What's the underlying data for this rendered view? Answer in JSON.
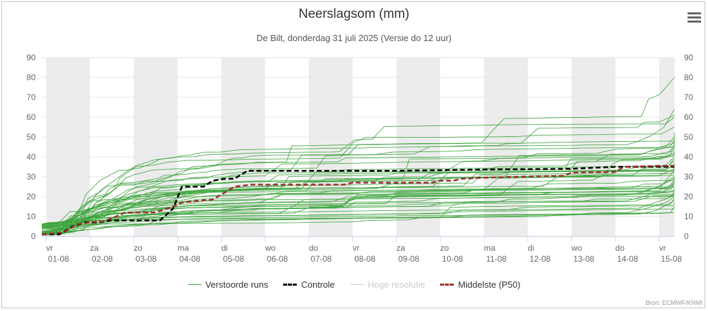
{
  "title": "Neerslagsom (mm)",
  "subtitle": "De Bilt, donderdag 31 juli 2025 (Versie do 12 uur)",
  "source": "Bron: ECMWF/KNMI",
  "menu_icon": "hamburger-menu-icon",
  "colors": {
    "ensemble": "#3aa33a",
    "control": "#000000",
    "highres": "#cccccc",
    "median": "#9e3030",
    "weekend_band": "#ececec",
    "grid": "#e6e6e6"
  },
  "legend": [
    {
      "key": "ensemble",
      "label": "Verstoorde runs",
      "style": "solid",
      "visible": true
    },
    {
      "key": "control",
      "label": "Controle",
      "style": "dashed",
      "visible": true
    },
    {
      "key": "highres",
      "label": "Hoge resolutie",
      "style": "solid",
      "visible": false
    },
    {
      "key": "median",
      "label": "Middelste (P50)",
      "style": "dashed",
      "visible": true
    }
  ],
  "chart_data": {
    "type": "line",
    "title": "Neerslagsom (mm)",
    "subtitle": "De Bilt, donderdag 31 juli 2025 (Versie do 12 uur)",
    "x_unit": "dagen vanaf 01-08 00 uur",
    "xlim": [
      -0.1,
      14.35
    ],
    "ylim": [
      0,
      90
    ],
    "y_ticks": [
      0,
      10,
      20,
      30,
      40,
      50,
      60,
      70,
      80,
      90
    ],
    "secondary_y_axis": true,
    "grid": true,
    "legend_position": "bottom",
    "x_ticks": [
      {
        "x": 0,
        "day": "vr",
        "date": "01-08"
      },
      {
        "x": 1,
        "day": "za",
        "date": "02-08"
      },
      {
        "x": 2,
        "day": "zo",
        "date": "03-08"
      },
      {
        "x": 3,
        "day": "ma",
        "date": "04-08"
      },
      {
        "x": 4,
        "day": "di",
        "date": "05-08"
      },
      {
        "x": 5,
        "day": "wo",
        "date": "06-08"
      },
      {
        "x": 6,
        "day": "do",
        "date": "07-08"
      },
      {
        "x": 7,
        "day": "vr",
        "date": "08-08"
      },
      {
        "x": 8,
        "day": "za",
        "date": "09-08"
      },
      {
        "x": 9,
        "day": "zo",
        "date": "10-08"
      },
      {
        "x": 10,
        "day": "ma",
        "date": "11-08"
      },
      {
        "x": 11,
        "day": "di",
        "date": "12-08"
      },
      {
        "x": 12,
        "day": "wo",
        "date": "13-08"
      },
      {
        "x": 13,
        "day": "do",
        "date": "14-08"
      },
      {
        "x": 14,
        "day": "vr",
        "date": "15-08"
      }
    ],
    "night_bands": [
      [
        0,
        1
      ],
      [
        2,
        3
      ],
      [
        4,
        5
      ],
      [
        6,
        7
      ],
      [
        8,
        9
      ],
      [
        10,
        11
      ],
      [
        12,
        13
      ],
      [
        14,
        14.35
      ]
    ],
    "series": [
      {
        "name": "Controle",
        "key": "control",
        "style": "dashed",
        "points": [
          [
            -0.1,
            1
          ],
          [
            0.3,
            1
          ],
          [
            0.6,
            5
          ],
          [
            0.9,
            7
          ],
          [
            1.2,
            7
          ],
          [
            1.5,
            8
          ],
          [
            2.0,
            8
          ],
          [
            2.6,
            8
          ],
          [
            2.9,
            14
          ],
          [
            3.1,
            25
          ],
          [
            3.6,
            25
          ],
          [
            3.8,
            28
          ],
          [
            4.1,
            29
          ],
          [
            4.3,
            29
          ],
          [
            4.6,
            33
          ],
          [
            5,
            33
          ],
          [
            6,
            33
          ],
          [
            8,
            33
          ],
          [
            9,
            33.3
          ],
          [
            10,
            33.6
          ],
          [
            11,
            33.8
          ],
          [
            12,
            34
          ],
          [
            12.5,
            34.5
          ],
          [
            13,
            35
          ],
          [
            14,
            35
          ],
          [
            14.35,
            35
          ]
        ]
      },
      {
        "name": "Middelste (P50)",
        "key": "median",
        "style": "dashed",
        "points": [
          [
            -0.1,
            1
          ],
          [
            0.4,
            2
          ],
          [
            0.7,
            6
          ],
          [
            1.0,
            7
          ],
          [
            1.3,
            7.5
          ],
          [
            1.6,
            10
          ],
          [
            1.8,
            12
          ],
          [
            2.5,
            12
          ],
          [
            2.9,
            15
          ],
          [
            3.1,
            17
          ],
          [
            3.5,
            18
          ],
          [
            3.8,
            18.5
          ],
          [
            4.0,
            21
          ],
          [
            4.3,
            25
          ],
          [
            4.7,
            26
          ],
          [
            5,
            26
          ],
          [
            6,
            26
          ],
          [
            6.8,
            26
          ],
          [
            7.0,
            27
          ],
          [
            8,
            27
          ],
          [
            8.8,
            27
          ],
          [
            9.0,
            28
          ],
          [
            9.3,
            28
          ],
          [
            9.5,
            29
          ],
          [
            10,
            29.5
          ],
          [
            10.8,
            30
          ],
          [
            11.8,
            30.5
          ],
          [
            12.0,
            32
          ],
          [
            13,
            32.5
          ],
          [
            13.2,
            35
          ],
          [
            14,
            35.5
          ],
          [
            14.35,
            35.5
          ]
        ]
      }
    ],
    "ensemble": {
      "name": "Verstoorde runs",
      "count": 50,
      "final_value_range": [
        12,
        80
      ],
      "final_values": [
        12,
        14,
        15,
        17,
        18,
        19,
        20,
        20,
        21,
        21,
        22,
        23,
        23,
        24,
        25,
        25,
        26,
        27,
        28,
        28,
        29,
        30,
        30,
        31,
        32,
        33,
        33,
        34,
        35,
        36,
        37,
        38,
        39,
        40,
        41,
        42,
        43,
        44,
        45,
        46,
        47,
        48,
        48,
        50,
        52,
        55,
        60,
        61,
        64,
        80
      ]
    }
  }
}
